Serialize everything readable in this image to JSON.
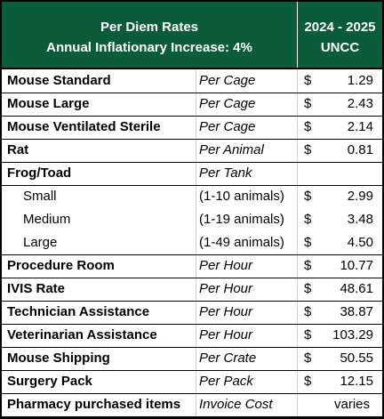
{
  "header": {
    "title": "Per Diem Rates",
    "subtitle": "Annual Inflationary Increase: 4%",
    "years": "2024 - 2025",
    "org": "UNCC"
  },
  "table": {
    "rows": [
      {
        "name": "Mouse Standard",
        "unit": "Per Cage",
        "currency": "$",
        "amount": "1.29"
      },
      {
        "name": "Mouse Large",
        "unit": "Per Cage",
        "currency": "$",
        "amount": "2.43"
      },
      {
        "name": "Mouse Ventilated Sterile",
        "unit": "Per Cage",
        "currency": "$",
        "amount": "2.14"
      },
      {
        "name": "Rat",
        "unit": "Per Animal",
        "currency": "$",
        "amount": "0.81"
      },
      {
        "name": "Frog/Toad",
        "unit": "Per Tank",
        "subrows": [
          {
            "name": "Small",
            "unit": "(1-10 animals)",
            "currency": "$",
            "amount": "2.99"
          },
          {
            "name": "Medium",
            "unit": "(1-19 animals)",
            "currency": "$",
            "amount": "3.48"
          },
          {
            "name": "Large",
            "unit": "(1-49 animals)",
            "currency": "$",
            "amount": "4.50"
          }
        ]
      },
      {
        "name": "Procedure Room",
        "unit": "Per Hour",
        "currency": "$",
        "amount": "10.77"
      },
      {
        "name": "IVIS Rate",
        "unit": "Per Hour",
        "currency": "$",
        "amount": "48.61"
      },
      {
        "name": "Technician Assistance",
        "unit": "Per Hour",
        "currency": "$",
        "amount": "38.87"
      },
      {
        "name": "Veterinarian Assistance",
        "unit": "Per Hour",
        "currency": "$",
        "amount": "103.29"
      },
      {
        "name": "Mouse Shipping",
        "unit": "Per Crate",
        "currency": "$",
        "amount": "50.55"
      },
      {
        "name": "Surgery Pack",
        "unit": "Per Pack",
        "currency": "$",
        "amount": "12.15"
      },
      {
        "name": "Pharmacy purchased items",
        "unit": "Invoice Cost",
        "amount": "varies"
      }
    ]
  }
}
